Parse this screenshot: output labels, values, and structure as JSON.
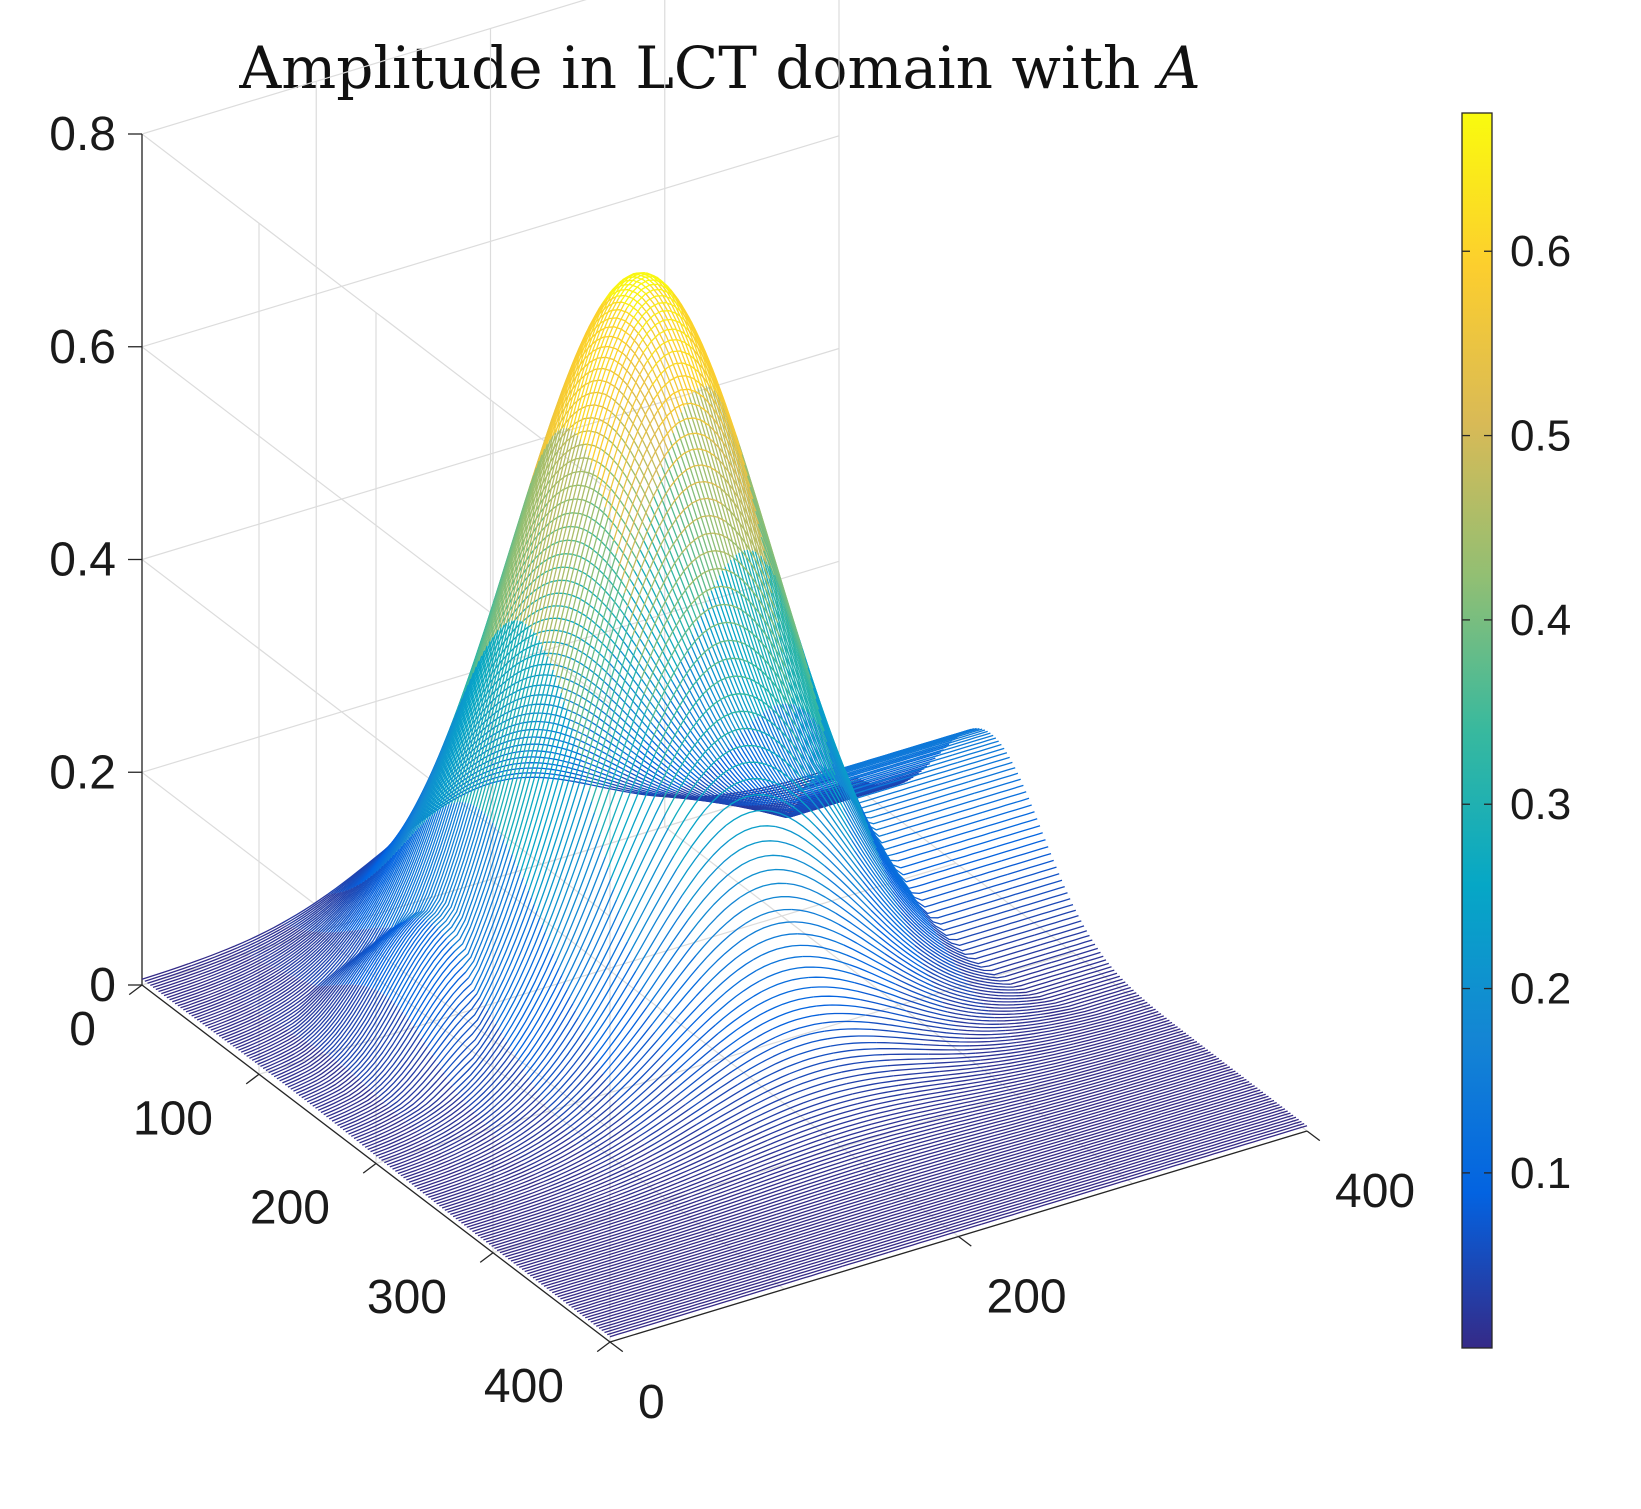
{
  "chart_data": {
    "type": "surface",
    "title": "Amplitude in LCT domain with",
    "title_math_symbol": "A",
    "x_axis": {
      "range": [
        0,
        400
      ],
      "ticks": [
        0,
        200,
        400
      ],
      "tick_labels": [
        "0",
        "200",
        "400"
      ]
    },
    "y_axis": {
      "range": [
        0,
        400
      ],
      "ticks": [
        0,
        100,
        200,
        300,
        400
      ],
      "tick_labels": [
        "0",
        "100",
        "200",
        "300",
        "400"
      ]
    },
    "z_axis": {
      "range": [
        0,
        0.8
      ],
      "ticks": [
        0,
        0.2,
        0.4,
        0.6,
        0.8
      ],
      "tick_labels": [
        "0",
        "0.2",
        "0.4",
        "0.6",
        "0.8"
      ]
    },
    "colorbar": {
      "range": [
        0.005,
        0.675
      ],
      "colormap": "parula",
      "ticks": [
        0.1,
        0.2,
        0.3,
        0.4,
        0.5,
        0.6
      ],
      "tick_labels": [
        "0.1",
        "0.2",
        "0.3",
        "0.4",
        "0.5",
        "0.6"
      ]
    },
    "grid": true,
    "surface_features": [
      {
        "kind": "main-peak",
        "x": 200,
        "y": 130,
        "height": 0.67
      },
      {
        "kind": "ridge",
        "y": 130,
        "x_from": 60,
        "x_to": 400,
        "height": 0.14
      },
      {
        "kind": "valley",
        "y": 35,
        "height": 0.005
      }
    ],
    "colors": {
      "parula": [
        "#352a87",
        "#0363e1",
        "#1485d4",
        "#06a7c6",
        "#38b99e",
        "#92bf73",
        "#d9ba56",
        "#fcce2e",
        "#f9fb0e"
      ]
    }
  }
}
